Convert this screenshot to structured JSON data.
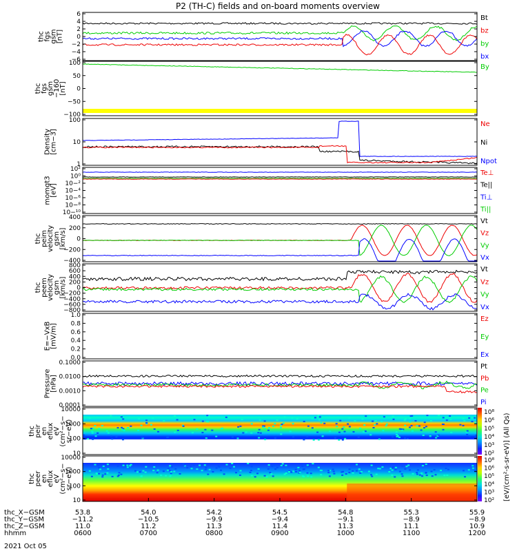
{
  "title": "P2 (TH-C) fields and on-board moments overview",
  "colors": {
    "black": "#000000",
    "red": "#ee0000",
    "green": "#00cc00",
    "blue": "#0000ff",
    "yellow": "#ffff00"
  },
  "chart_data": [
    {
      "type": "line",
      "ylabel": [
        "thc",
        "fgs",
        "gsm",
        "[nT]"
      ],
      "yticks": [
        "6",
        "4",
        "2",
        "0",
        "−2",
        "−4",
        "−6"
      ],
      "legend": [
        {
          "label": "Bt",
          "color": "black"
        },
        {
          "label": "bz",
          "color": "red"
        },
        {
          "label": "by",
          "color": "green"
        },
        {
          "label": "bx",
          "color": "blue"
        }
      ]
    },
    {
      "type": "line",
      "ylabel": [
        "thc",
        "fgs",
        "gsm",
        "−160",
        "[nT]"
      ],
      "yticks": [
        "100",
        "50",
        "0",
        "−50",
        "−100"
      ],
      "legend": [
        {
          "label": "By",
          "color": "green"
        }
      ]
    },
    {
      "type": "line",
      "ylabel": [
        "Density",
        "[cm−3]"
      ],
      "yticks": [
        "100",
        "10",
        "1"
      ],
      "legend": [
        {
          "label": "Ne",
          "color": "red"
        },
        {
          "label": "Ni",
          "color": "black"
        },
        {
          "label": "Npot",
          "color": "blue"
        }
      ]
    },
    {
      "type": "line",
      "ylabel": [
        "momgt3",
        "[eV]"
      ],
      "yticks": [
        "10²",
        "10⁰",
        "10−²",
        "10−⁴",
        "10−⁶",
        "10−⁸",
        "10−¹⁰"
      ],
      "legend": [
        {
          "label": "Te⊥",
          "color": "red"
        },
        {
          "label": "Te||",
          "color": "black"
        },
        {
          "label": "Ti⊥",
          "color": "blue"
        },
        {
          "label": "Ti||",
          "color": "green"
        }
      ]
    },
    {
      "type": "line",
      "ylabel": [
        "thc",
        "peim",
        "velocity",
        "gsm",
        "[km/s]"
      ],
      "yticks": [
        "400",
        "200",
        "0",
        "−200",
        "−400"
      ],
      "legend": [
        {
          "label": "Vt",
          "color": "black"
        },
        {
          "label": "Vz",
          "color": "red"
        },
        {
          "label": "Vy",
          "color": "green"
        },
        {
          "label": "Vx",
          "color": "blue"
        }
      ]
    },
    {
      "type": "line",
      "ylabel": [
        "thc",
        "peem",
        "velocity",
        "gsm",
        "[km/s]"
      ],
      "yticks": [
        "800",
        "600",
        "400",
        "200",
        "0",
        "−200",
        "−400",
        "−600",
        "−800"
      ],
      "legend": [
        {
          "label": "Vt",
          "color": "black"
        },
        {
          "label": "Vz",
          "color": "red"
        },
        {
          "label": "Vy",
          "color": "green"
        },
        {
          "label": "Vx",
          "color": "blue"
        }
      ]
    },
    {
      "type": "line",
      "ylabel": [
        "E=−VxB",
        "[mV/m]"
      ],
      "yticks": [
        "1.0",
        "0.8",
        "0.6",
        "0.4",
        "0.2",
        "0.0"
      ],
      "legend": [
        {
          "label": "Ez",
          "color": "red"
        },
        {
          "label": "Ey",
          "color": "green"
        },
        {
          "label": "Ex",
          "color": "blue"
        }
      ]
    },
    {
      "type": "line",
      "ylabel": [
        "Pressure",
        "[nPa]"
      ],
      "yticks": [
        "0.1000",
        "0.0100",
        "0.0010",
        "0.0001"
      ],
      "legend": [
        {
          "label": "Pt",
          "color": "black"
        },
        {
          "label": "Pb",
          "color": "red"
        },
        {
          "label": "Pe",
          "color": "green"
        },
        {
          "label": "Pi",
          "color": "blue"
        }
      ]
    },
    {
      "type": "heatmap",
      "ylabel": [
        "thc",
        "peir",
        "en",
        "eflux",
        "eV",
        "(cm²−s−",
        "sr−eV)"
      ],
      "yticks": [
        "10000",
        "1000",
        "100",
        "10"
      ],
      "colorbar": [
        "10⁸",
        "10⁶",
        "10⁵",
        "10⁴",
        "10³",
        "10²"
      ]
    },
    {
      "type": "heatmap",
      "ylabel": [
        "thc",
        "peer",
        "en",
        "eflux",
        "eV",
        "(cm²−s−",
        "sr−eV)"
      ],
      "yticks": [
        "10000",
        "1000",
        "100",
        "10"
      ],
      "colorbar": [
        "10⁸",
        "10⁶",
        "10⁵",
        "10⁴",
        "10³",
        "10²"
      ]
    }
  ],
  "colorbar_label": "[eV/(cm²-s-sr-eV)] (All Qs)",
  "axis_rows": [
    {
      "label": "thc_X−GSM",
      "values": [
        "53.8",
        "54.0",
        "54.2",
        "54.5",
        "54.8",
        "55.3",
        "55.9"
      ]
    },
    {
      "label": "thc_Y−GSM",
      "values": [
        "−11.2",
        "−10.5",
        "−9.9",
        "−9.4",
        "−9.1",
        "−8.9",
        "−8.9"
      ]
    },
    {
      "label": "thc_Z−GSM",
      "values": [
        "11.0",
        "11.2",
        "11.3",
        "11.4",
        "11.3",
        "11.1",
        "10.9"
      ]
    },
    {
      "label": "hhmm",
      "values": [
        "0600",
        "0700",
        "0800",
        "0900",
        "1000",
        "1100",
        "1200"
      ]
    }
  ],
  "date": "2021 Oct 05"
}
